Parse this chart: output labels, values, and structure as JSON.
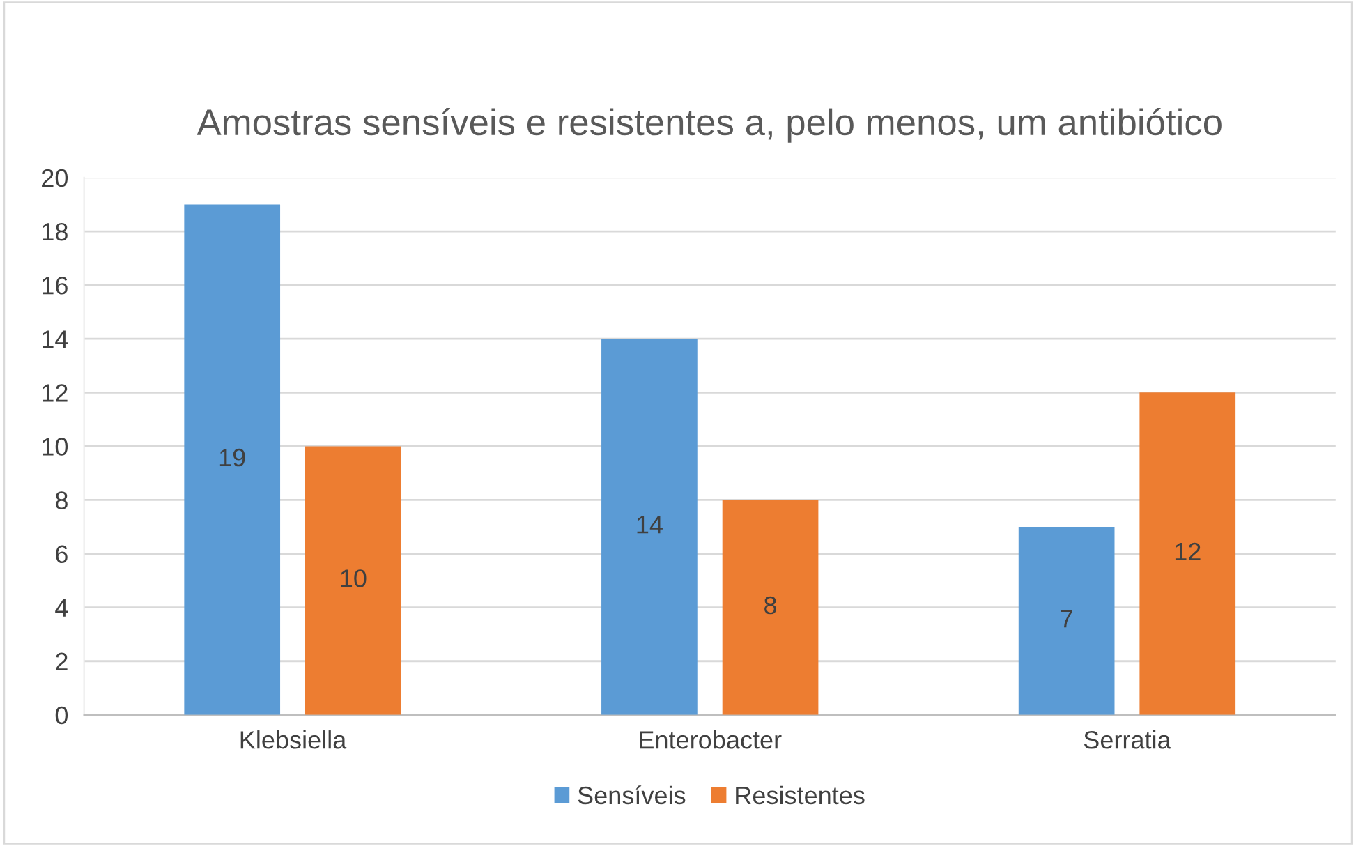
{
  "chart_data": {
    "type": "bar",
    "title": "Amostras sensíveis e resistentes a, pelo menos, um antibiótico",
    "categories": [
      "Klebsiella",
      "Enterobacter",
      "Serratia"
    ],
    "series": [
      {
        "name": "Sensíveis",
        "color": "#5b9bd5",
        "values": [
          19,
          14,
          7
        ]
      },
      {
        "name": "Resistentes",
        "color": "#ed7d31",
        "values": [
          10,
          8,
          12
        ]
      }
    ],
    "ylim": [
      0,
      20
    ],
    "yticks": [
      0,
      2,
      4,
      6,
      8,
      10,
      12,
      14,
      16,
      18,
      20
    ],
    "grid": "y",
    "legend": "bottom",
    "data_labels": true
  }
}
